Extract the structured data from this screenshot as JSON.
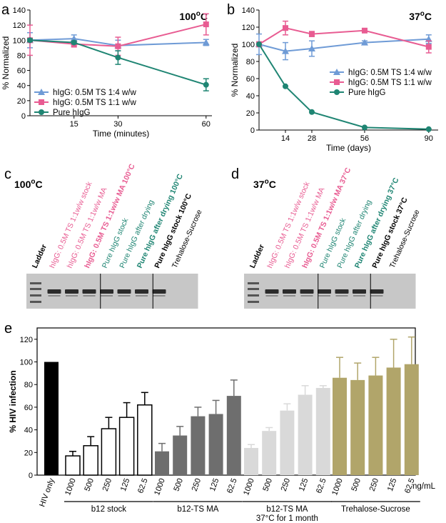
{
  "colors": {
    "blue": "#6f9bd6",
    "pink": "#e85c92",
    "teal": "#1f8573",
    "black": "#000000",
    "dark_gray": "#6e6e6e",
    "light_gray": "#d9d9d9",
    "khaki": "#b1a56a"
  },
  "panel_labels": {
    "a": "a",
    "b": "b",
    "c": "c",
    "d": "d",
    "e": "e"
  },
  "chart_data": [
    {
      "panel": "a",
      "type": "line",
      "title": "100°C",
      "title_base": "100",
      "title_sup": "o",
      "title_unit": "C",
      "xlabel": "Time (minutes)",
      "ylabel": "% Normalized",
      "xlim": [
        0,
        62
      ],
      "ylim": [
        0,
        140
      ],
      "xticks": [
        15,
        30,
        60
      ],
      "yticks": [
        0,
        20,
        40,
        60,
        80,
        100,
        120,
        140
      ],
      "legend_position": "bottom-left",
      "series": [
        {
          "name": "hIgG: 0.5M TS 1:4 w/w",
          "color": "#6f9bd6",
          "marker": "triangle",
          "x": [
            0,
            15,
            30,
            60
          ],
          "y": [
            100,
            102,
            93,
            97
          ],
          "err": [
            10,
            5,
            7,
            4
          ]
        },
        {
          "name": "hIgG: 0.5M TS 1:1 w/w",
          "color": "#e85c92",
          "marker": "square",
          "x": [
            0,
            15,
            30,
            60
          ],
          "y": [
            100,
            95,
            92,
            121
          ],
          "err": [
            20,
            4,
            12,
            14
          ]
        },
        {
          "name": "Pure hIgG",
          "color": "#1f8573",
          "marker": "circle",
          "x": [
            0,
            15,
            30,
            60
          ],
          "y": [
            100,
            97,
            77,
            41
          ],
          "err": [
            2,
            2,
            9,
            8
          ]
        }
      ]
    },
    {
      "panel": "b",
      "type": "line",
      "title": "37°C",
      "title_base": "37",
      "title_sup": "o",
      "title_unit": "C",
      "xlabel": "Time (days)",
      "ylabel": "% Normalized",
      "xlim": [
        0,
        95
      ],
      "ylim": [
        0,
        140
      ],
      "xticks": [
        14,
        28,
        56,
        90
      ],
      "yticks": [
        0,
        20,
        40,
        60,
        80,
        100,
        120,
        140
      ],
      "legend_position": "middle-right",
      "series": [
        {
          "name": "hIgG: 0.5M TS 1:4 w/w",
          "color": "#6f9bd6",
          "marker": "triangle",
          "x": [
            0,
            14,
            28,
            56,
            90
          ],
          "y": [
            100,
            92,
            95,
            102,
            106
          ],
          "err": [
            12,
            10,
            9,
            2,
            5
          ]
        },
        {
          "name": "hIgG: 0.5M TS 1:1 w/w",
          "color": "#e85c92",
          "marker": "square",
          "x": [
            0,
            14,
            28,
            56,
            90
          ],
          "y": [
            100,
            119,
            112,
            116,
            97
          ],
          "err": [
            3,
            8,
            3,
            2,
            7
          ]
        },
        {
          "name": "Pure hIgG",
          "color": "#1f8573",
          "marker": "circle",
          "x": [
            0,
            14,
            28,
            56,
            90
          ],
          "y": [
            100,
            51,
            21,
            3,
            1
          ],
          "err": [
            1,
            1,
            1,
            1,
            1
          ]
        }
      ]
    },
    {
      "panel": "e",
      "type": "bar",
      "ylabel": "% HIV infection",
      "unit_label": "ng/mL",
      "ylim": [
        0,
        130
      ],
      "yticks": [
        0,
        20,
        40,
        60,
        80,
        100,
        120
      ],
      "groups": [
        {
          "name": "HIV only",
          "label_lines": [],
          "color": "#000000",
          "categories": [
            "HIV only"
          ],
          "values": [
            100
          ],
          "err": [
            0
          ]
        },
        {
          "name": "b12 stock",
          "label_lines": [
            "b12 stock"
          ],
          "color": "#ffffff",
          "categories": [
            "1000",
            "500",
            "250",
            "125",
            "62.5"
          ],
          "values": [
            17,
            26,
            41,
            51,
            62
          ],
          "err": [
            4,
            8,
            10,
            13,
            11
          ]
        },
        {
          "name": "b12-TS MA",
          "label_lines": [
            "b12-TS MA"
          ],
          "color": "#6e6e6e",
          "categories": [
            "1000",
            "500",
            "250",
            "125",
            "62.5"
          ],
          "values": [
            21,
            35,
            52,
            54,
            70
          ],
          "err": [
            7,
            8,
            8,
            12,
            14
          ]
        },
        {
          "name": "b12-TS MA 37°C for 1 month",
          "label_lines": [
            "b12-TS MA",
            "37°C for 1 month"
          ],
          "color": "#d9d9d9",
          "categories": [
            "1000",
            "500",
            "250",
            "125",
            "62.5"
          ],
          "values": [
            24,
            39,
            57,
            71,
            77
          ],
          "err": [
            3,
            3,
            6,
            8,
            2
          ]
        },
        {
          "name": "Trehalose-Sucrose",
          "label_lines": [
            "Trehalose-Sucrose"
          ],
          "color": "#b1a56a",
          "categories": [
            "1000",
            "500",
            "250",
            "125",
            "62.5"
          ],
          "values": [
            86,
            84,
            88,
            95,
            98
          ],
          "err": [
            18,
            15,
            16,
            25,
            24
          ]
        }
      ]
    }
  ],
  "gels": [
    {
      "panel": "c",
      "temp": "100°C",
      "temp_base": "100",
      "temp_sup": "o",
      "temp_unit": "C",
      "lanes": [
        {
          "label": "Ladder",
          "color": "#000000",
          "bold": true
        },
        {
          "label": "hIgG: 0.5M TS 1:1w/w stock",
          "color": "#e85c92",
          "bold": false
        },
        {
          "label": "hIgG: 0.5M TS 1:1w/w MA",
          "color": "#e85c92",
          "bold": false
        },
        {
          "label": "hIgG: 0.5M TS 1:1w/w MA 100°C",
          "color": "#e85c92",
          "bold": true
        },
        {
          "label": "Pure hIgG stock",
          "color": "#1f8573",
          "bold": false
        },
        {
          "label": "Pure hIgG after drying",
          "color": "#1f8573",
          "bold": false
        },
        {
          "label": "Pure hIgG after drying 100°C",
          "color": "#1f8573",
          "bold": true
        },
        {
          "label": "Pure hIgG stock 100°C",
          "color": "#000000",
          "bold": true
        },
        {
          "label": "Trehalose-Sucrose",
          "color": "#000000",
          "bold": false
        }
      ]
    },
    {
      "panel": "d",
      "temp": "37°C",
      "temp_base": "37",
      "temp_sup": "o",
      "temp_unit": "C",
      "lanes": [
        {
          "label": "Ladder",
          "color": "#000000",
          "bold": true
        },
        {
          "label": "hIgG: 0.5M TS 1:1w/w stock",
          "color": "#e85c92",
          "bold": false
        },
        {
          "label": "hIgG: 0.5M TS 1:1w/w MA",
          "color": "#e85c92",
          "bold": false
        },
        {
          "label": "hIgG: 0.5M TS 1:1w/w MA 37°C",
          "color": "#e85c92",
          "bold": true
        },
        {
          "label": "Pure hIgG stock",
          "color": "#1f8573",
          "bold": false
        },
        {
          "label": "Pure hIgG after drying",
          "color": "#1f8573",
          "bold": false
        },
        {
          "label": "Pure hIgG after drying 37°C",
          "color": "#1f8573",
          "bold": true
        },
        {
          "label": "Pure hIgG stock 37°C",
          "color": "#000000",
          "bold": true
        },
        {
          "label": "Trehalose-Sucrose",
          "color": "#000000",
          "bold": false
        }
      ]
    }
  ]
}
